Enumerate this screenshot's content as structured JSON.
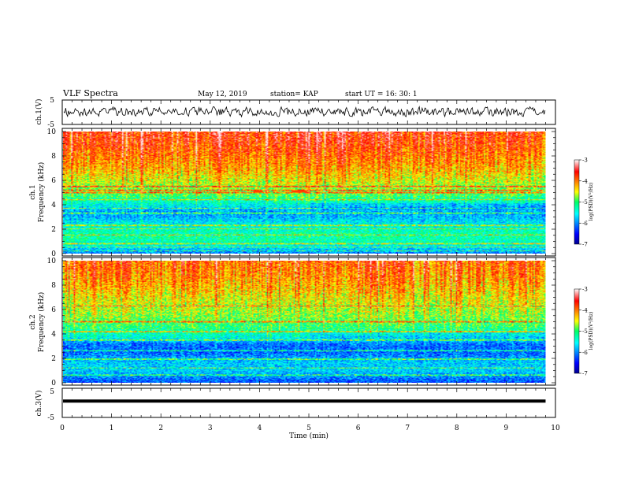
{
  "header": {
    "title": "VLF Spectra",
    "date": "May 12, 2019",
    "station": "station= KAP",
    "start": "start  UT =   16: 30: 1"
  },
  "chart_data": {
    "type": "heatmap",
    "x": {
      "label": "Time  (min)",
      "range": [
        0,
        10
      ],
      "ticks": [
        "0",
        "1",
        "2",
        "3",
        "4",
        "5",
        "6",
        "7",
        "8",
        "9",
        "10"
      ],
      "data_end": 9.8
    },
    "panels": [
      {
        "id": "ch1-waveform",
        "type": "line",
        "ylabel": "ch.1(V)",
        "ylim": [
          -5,
          5
        ],
        "yticks": [
          "5",
          "-5"
        ],
        "baseline": 0.2,
        "noise_amplitude": 2.6
      },
      {
        "id": "ch1-spectrogram",
        "type": "heatmap",
        "ylabel": "ch.1",
        "ylabel2": "Frequency  (kHz)",
        "ylim": [
          0,
          10
        ],
        "yticks": [
          "0",
          "2",
          "4",
          "6",
          "8",
          "10"
        ],
        "level_profile": [
          [
            0,
            -6.0
          ],
          [
            0.5,
            -5.6
          ],
          [
            1.0,
            -5.3
          ],
          [
            1.5,
            -5.2
          ],
          [
            2.5,
            -5.6
          ],
          [
            3.0,
            -5.9
          ],
          [
            3.5,
            -5.9
          ],
          [
            4.2,
            -5.4
          ],
          [
            4.8,
            -5.0
          ],
          [
            5.5,
            -4.8
          ],
          [
            6.0,
            -4.6
          ],
          [
            7.0,
            -4.3
          ],
          [
            8.0,
            -4.1
          ],
          [
            9.0,
            -3.9
          ],
          [
            10.0,
            -3.8
          ]
        ],
        "lines_khz": [
          0.2,
          0.5,
          0.8,
          1.5,
          2.0,
          2.3,
          3.3,
          3.7,
          4.4,
          5.0,
          5.2,
          5.5
        ],
        "bursts": [
          {
            "t_min": 3.85,
            "t_max": 4.05,
            "f_khz": 5.1
          },
          {
            "t_min": 4.65,
            "t_max": 4.95,
            "f_khz": 5.1
          }
        ],
        "colorbar": {
          "range": [
            -7,
            -3
          ],
          "ticks": [
            "-3",
            "-4",
            "-5",
            "-6",
            "-7"
          ],
          "label": "log(PSD)(V²/Hz)"
        }
      },
      {
        "id": "ch2-spectrogram",
        "type": "heatmap",
        "ylabel": "ch.2",
        "ylabel2": "Frequency  (kHz)",
        "ylim": [
          0,
          10
        ],
        "yticks": [
          "0",
          "2",
          "4",
          "6",
          "8",
          "10"
        ],
        "level_profile": [
          [
            0,
            -6.2
          ],
          [
            0.3,
            -6.1
          ],
          [
            1.0,
            -5.7
          ],
          [
            1.8,
            -5.8
          ],
          [
            2.5,
            -6.2
          ],
          [
            3.2,
            -6.1
          ],
          [
            3.7,
            -5.5
          ],
          [
            4.5,
            -5.1
          ],
          [
            5.5,
            -4.8
          ],
          [
            6.5,
            -4.6
          ],
          [
            7.5,
            -4.4
          ],
          [
            8.5,
            -4.2
          ],
          [
            10.0,
            -4.0
          ]
        ],
        "lines_khz": [
          0.6,
          1.2,
          1.9,
          2.6,
          3.5,
          4.2,
          5.0,
          6.3
        ],
        "bursts": [],
        "colorbar": {
          "range": [
            -7,
            -3
          ],
          "ticks": [
            "-3",
            "-4",
            "-5",
            "-6",
            "-7"
          ],
          "label": "log(PSD)(V²/Hz)"
        }
      },
      {
        "id": "ch3-waveform",
        "type": "line",
        "ylabel": "ch.3(V)",
        "ylim": [
          -5,
          5
        ],
        "yticks": [
          "5",
          "-5"
        ],
        "baseline": 0.6,
        "noise_amplitude": 0
      }
    ]
  }
}
